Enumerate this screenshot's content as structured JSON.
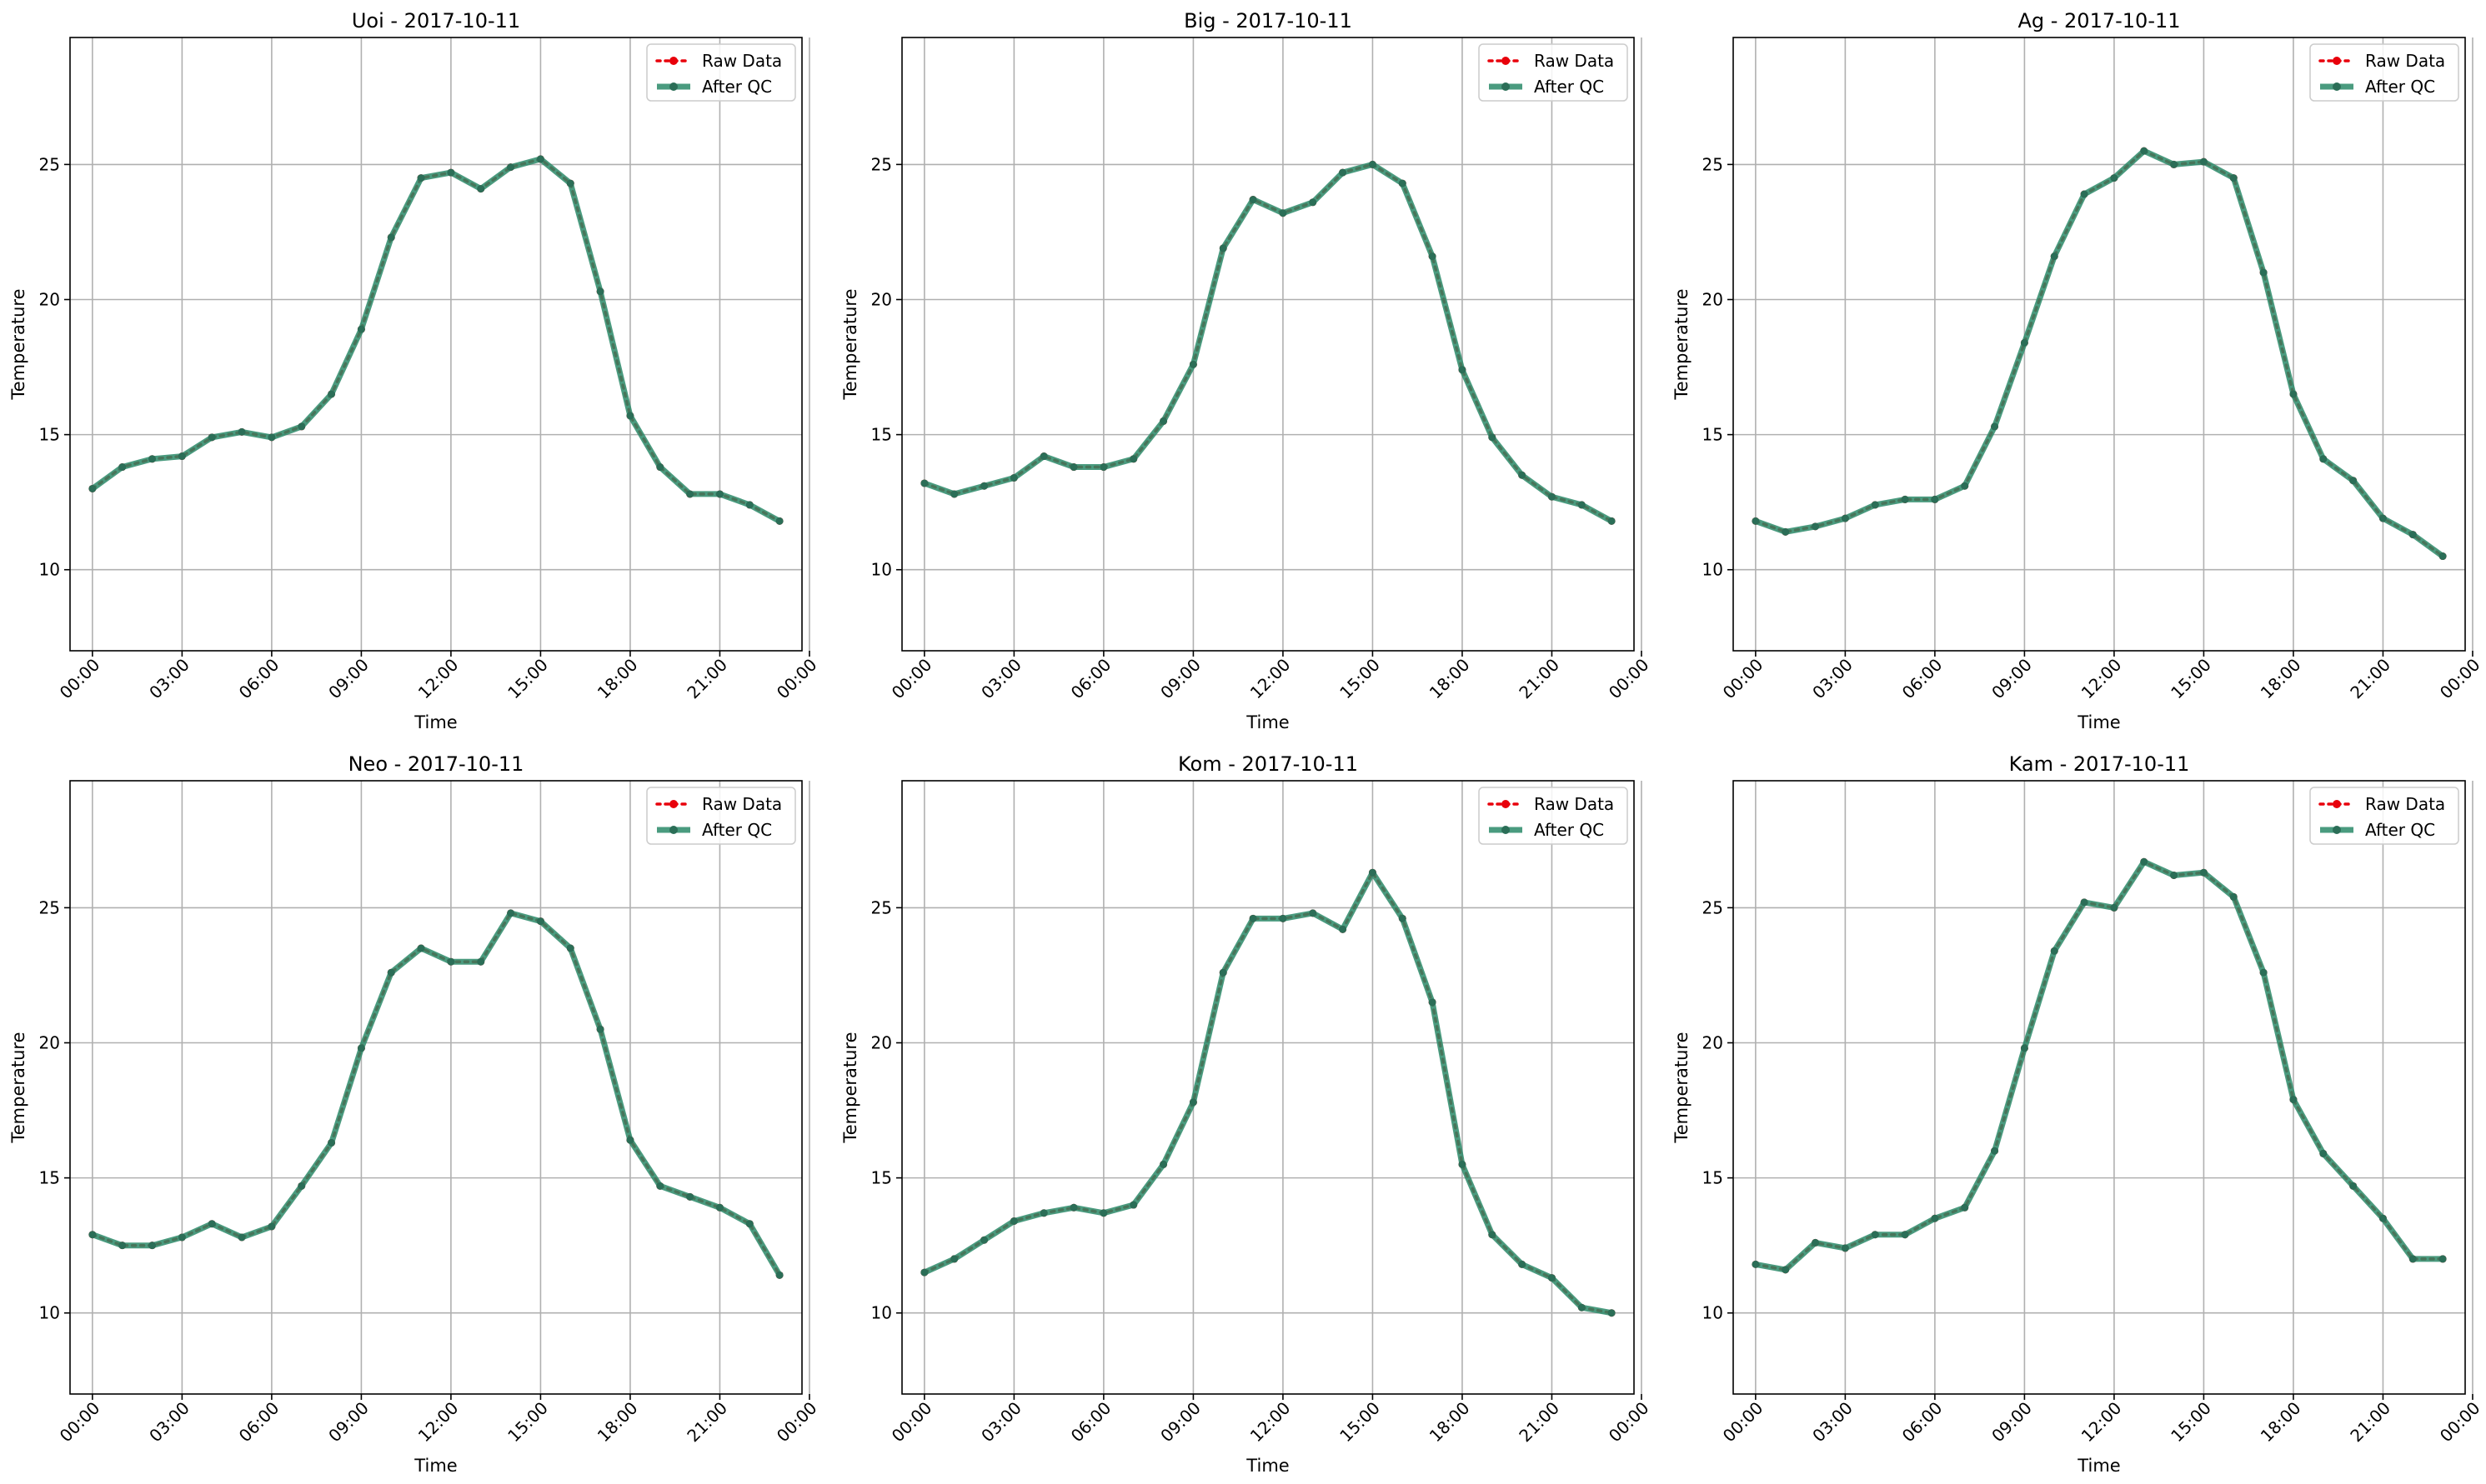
{
  "colors": {
    "raw": "#e8000b",
    "qc": "#2a8a68",
    "grid": "#b0b0b0",
    "axis": "#000000"
  },
  "chart_data": [
    {
      "type": "line",
      "title": "Uoi - 2017-10-11",
      "xlabel": "Time",
      "ylabel": "Temperature",
      "xlim": [
        -0.75,
        23.75
      ],
      "ylim": [
        7.0,
        29.7
      ],
      "xticks": [
        0,
        3,
        6,
        9,
        12,
        15,
        18,
        21,
        24
      ],
      "xtick_labels": [
        "00:00",
        "03:00",
        "06:00",
        "09:00",
        "12:00",
        "15:00",
        "18:00",
        "21:00",
        "00:00"
      ],
      "yticks": [
        10,
        15,
        20,
        25
      ],
      "ytick_labels": [
        "10",
        "15",
        "20",
        "25"
      ],
      "grid": true,
      "legend_position": "top-right",
      "x": [
        0,
        1,
        2,
        3,
        4,
        5,
        6,
        7,
        8,
        9,
        10,
        11,
        12,
        13,
        14,
        15,
        16,
        17,
        18,
        19,
        20,
        21,
        22,
        23
      ],
      "series": [
        {
          "name": "Raw Data",
          "values": [
            13.0,
            13.8,
            14.1,
            14.2,
            14.9,
            15.1,
            14.9,
            15.3,
            16.5,
            18.9,
            22.3,
            24.5,
            24.7,
            24.1,
            24.9,
            25.2,
            24.3,
            20.3,
            15.7,
            13.8,
            12.8,
            12.8,
            12.4,
            11.8
          ]
        },
        {
          "name": "After QC",
          "values": [
            13.0,
            13.8,
            14.1,
            14.2,
            14.9,
            15.1,
            14.9,
            15.3,
            16.5,
            18.9,
            22.3,
            24.5,
            24.7,
            24.1,
            24.9,
            25.2,
            24.3,
            20.3,
            15.7,
            13.8,
            12.8,
            12.8,
            12.4,
            11.8
          ]
        }
      ]
    },
    {
      "type": "line",
      "title": "Big - 2017-10-11",
      "xlabel": "Time",
      "ylabel": "Temperature",
      "xlim": [
        -0.75,
        23.75
      ],
      "ylim": [
        7.0,
        29.7
      ],
      "xticks": [
        0,
        3,
        6,
        9,
        12,
        15,
        18,
        21,
        24
      ],
      "xtick_labels": [
        "00:00",
        "03:00",
        "06:00",
        "09:00",
        "12:00",
        "15:00",
        "18:00",
        "21:00",
        "00:00"
      ],
      "yticks": [
        10,
        15,
        20,
        25
      ],
      "ytick_labels": [
        "10",
        "15",
        "20",
        "25"
      ],
      "grid": true,
      "legend_position": "top-right",
      "x": [
        0,
        1,
        2,
        3,
        4,
        5,
        6,
        7,
        8,
        9,
        10,
        11,
        12,
        13,
        14,
        15,
        16,
        17,
        18,
        19,
        20,
        21,
        22,
        23
      ],
      "series": [
        {
          "name": "Raw Data",
          "values": [
            13.2,
            12.8,
            13.1,
            13.4,
            14.2,
            13.8,
            13.8,
            14.1,
            15.5,
            17.6,
            21.9,
            23.7,
            23.2,
            23.6,
            24.7,
            25.0,
            24.3,
            21.6,
            17.4,
            14.9,
            13.5,
            12.7,
            12.4,
            11.8
          ]
        },
        {
          "name": "After QC",
          "values": [
            13.2,
            12.8,
            13.1,
            13.4,
            14.2,
            13.8,
            13.8,
            14.1,
            15.5,
            17.6,
            21.9,
            23.7,
            23.2,
            23.6,
            24.7,
            25.0,
            24.3,
            21.6,
            17.4,
            14.9,
            13.5,
            12.7,
            12.4,
            11.8
          ]
        }
      ]
    },
    {
      "type": "line",
      "title": "Ag - 2017-10-11",
      "xlabel": "Time",
      "ylabel": "Temperature",
      "xlim": [
        -0.75,
        23.75
      ],
      "ylim": [
        7.0,
        29.7
      ],
      "xticks": [
        0,
        3,
        6,
        9,
        12,
        15,
        18,
        21,
        24
      ],
      "xtick_labels": [
        "00:00",
        "03:00",
        "06:00",
        "09:00",
        "12:00",
        "15:00",
        "18:00",
        "21:00",
        "00:00"
      ],
      "yticks": [
        10,
        15,
        20,
        25
      ],
      "ytick_labels": [
        "10",
        "15",
        "20",
        "25"
      ],
      "grid": true,
      "legend_position": "top-right",
      "x": [
        0,
        1,
        2,
        3,
        4,
        5,
        6,
        7,
        8,
        9,
        10,
        11,
        12,
        13,
        14,
        15,
        16,
        17,
        18,
        19,
        20,
        21,
        22,
        23
      ],
      "series": [
        {
          "name": "Raw Data",
          "values": [
            11.8,
            11.4,
            11.6,
            11.9,
            12.4,
            12.6,
            12.6,
            13.1,
            15.3,
            18.4,
            21.6,
            23.9,
            24.5,
            25.5,
            25.0,
            25.1,
            24.5,
            21.0,
            16.5,
            14.1,
            13.3,
            11.9,
            11.3,
            10.5
          ]
        },
        {
          "name": "After QC",
          "values": [
            11.8,
            11.4,
            11.6,
            11.9,
            12.4,
            12.6,
            12.6,
            13.1,
            15.3,
            18.4,
            21.6,
            23.9,
            24.5,
            25.5,
            25.0,
            25.1,
            24.5,
            21.0,
            16.5,
            14.1,
            13.3,
            11.9,
            11.3,
            10.5
          ]
        }
      ]
    },
    {
      "type": "line",
      "title": "Neo - 2017-10-11",
      "xlabel": "Time",
      "ylabel": "Temperature",
      "xlim": [
        -0.75,
        23.75
      ],
      "ylim": [
        7.0,
        29.7
      ],
      "xticks": [
        0,
        3,
        6,
        9,
        12,
        15,
        18,
        21,
        24
      ],
      "xtick_labels": [
        "00:00",
        "03:00",
        "06:00",
        "09:00",
        "12:00",
        "15:00",
        "18:00",
        "21:00",
        "00:00"
      ],
      "yticks": [
        10,
        15,
        20,
        25
      ],
      "ytick_labels": [
        "10",
        "15",
        "20",
        "25"
      ],
      "grid": true,
      "legend_position": "top-right",
      "x": [
        0,
        1,
        2,
        3,
        4,
        5,
        6,
        7,
        8,
        9,
        10,
        11,
        12,
        13,
        14,
        15,
        16,
        17,
        18,
        19,
        20,
        21,
        22,
        23
      ],
      "series": [
        {
          "name": "Raw Data",
          "values": [
            12.9,
            12.5,
            12.5,
            12.8,
            13.3,
            12.8,
            13.2,
            14.7,
            16.3,
            19.8,
            22.6,
            23.5,
            23.0,
            23.0,
            24.8,
            24.5,
            23.5,
            20.5,
            16.4,
            14.7,
            14.3,
            13.9,
            13.3,
            11.4
          ]
        },
        {
          "name": "After QC",
          "values": [
            12.9,
            12.5,
            12.5,
            12.8,
            13.3,
            12.8,
            13.2,
            14.7,
            16.3,
            19.8,
            22.6,
            23.5,
            23.0,
            23.0,
            24.8,
            24.5,
            23.5,
            20.5,
            16.4,
            14.7,
            14.3,
            13.9,
            13.3,
            11.4
          ]
        }
      ]
    },
    {
      "type": "line",
      "title": "Kom - 2017-10-11",
      "xlabel": "Time",
      "ylabel": "Temperature",
      "xlim": [
        -0.75,
        23.75
      ],
      "ylim": [
        7.0,
        29.7
      ],
      "xticks": [
        0,
        3,
        6,
        9,
        12,
        15,
        18,
        21,
        24
      ],
      "xtick_labels": [
        "00:00",
        "03:00",
        "06:00",
        "09:00",
        "12:00",
        "15:00",
        "18:00",
        "21:00",
        "00:00"
      ],
      "yticks": [
        10,
        15,
        20,
        25
      ],
      "ytick_labels": [
        "10",
        "15",
        "20",
        "25"
      ],
      "grid": true,
      "legend_position": "top-right",
      "x": [
        0,
        1,
        2,
        3,
        4,
        5,
        6,
        7,
        8,
        9,
        10,
        11,
        12,
        13,
        14,
        15,
        16,
        17,
        18,
        19,
        20,
        21,
        22,
        23
      ],
      "series": [
        {
          "name": "Raw Data",
          "values": [
            11.5,
            12.0,
            12.7,
            13.4,
            13.7,
            13.9,
            13.7,
            14.0,
            15.5,
            17.8,
            22.6,
            24.6,
            24.6,
            24.8,
            24.2,
            26.3,
            24.6,
            21.5,
            15.5,
            12.9,
            11.8,
            11.3,
            10.2,
            10.0
          ]
        },
        {
          "name": "After QC",
          "values": [
            11.5,
            12.0,
            12.7,
            13.4,
            13.7,
            13.9,
            13.7,
            14.0,
            15.5,
            17.8,
            22.6,
            24.6,
            24.6,
            24.8,
            24.2,
            26.3,
            24.6,
            21.5,
            15.5,
            12.9,
            11.8,
            11.3,
            10.2,
            10.0
          ]
        }
      ]
    },
    {
      "type": "line",
      "title": "Kam - 2017-10-11",
      "xlabel": "Time",
      "ylabel": "Temperature",
      "xlim": [
        -0.75,
        23.75
      ],
      "ylim": [
        7.0,
        29.7
      ],
      "xticks": [
        0,
        3,
        6,
        9,
        12,
        15,
        18,
        21,
        24
      ],
      "xtick_labels": [
        "00:00",
        "03:00",
        "06:00",
        "09:00",
        "12:00",
        "15:00",
        "18:00",
        "21:00",
        "00:00"
      ],
      "yticks": [
        10,
        15,
        20,
        25
      ],
      "ytick_labels": [
        "10",
        "15",
        "20",
        "25"
      ],
      "grid": true,
      "legend_position": "top-right",
      "x": [
        0,
        1,
        2,
        3,
        4,
        5,
        6,
        7,
        8,
        9,
        10,
        11,
        12,
        13,
        14,
        15,
        16,
        17,
        18,
        19,
        20,
        21,
        22,
        23
      ],
      "series": [
        {
          "name": "Raw Data",
          "values": [
            11.8,
            11.6,
            12.6,
            12.4,
            12.9,
            12.9,
            13.5,
            13.9,
            16.0,
            19.8,
            23.4,
            25.2,
            25.0,
            26.7,
            26.2,
            26.3,
            25.4,
            22.6,
            17.9,
            15.9,
            14.7,
            13.5,
            12.0,
            12.0
          ]
        },
        {
          "name": "After QC",
          "values": [
            11.8,
            11.6,
            12.6,
            12.4,
            12.9,
            12.9,
            13.5,
            13.9,
            16.0,
            19.8,
            23.4,
            25.2,
            25.0,
            26.7,
            26.2,
            26.3,
            25.4,
            22.6,
            17.9,
            15.9,
            14.7,
            13.5,
            12.0,
            12.0
          ]
        }
      ]
    }
  ]
}
